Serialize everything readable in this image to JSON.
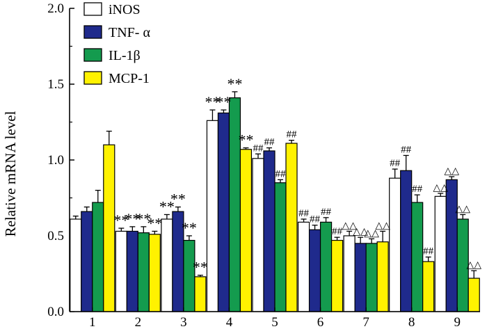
{
  "chart_data": {
    "type": "bar",
    "title": "",
    "xlabel": "",
    "ylabel": "Relative mRNA level",
    "ylim": [
      0,
      2.0
    ],
    "yticks": [
      "0.0",
      "0.5",
      "1.0",
      "1.5",
      "2.0"
    ],
    "categories": [
      "1",
      "2",
      "3",
      "4",
      "5",
      "6",
      "7",
      "8",
      "9"
    ],
    "legend_position": "top-left",
    "series": [
      {
        "name": "iNOS",
        "color": "#ffffff",
        "values": [
          0.61,
          0.53,
          0.61,
          1.26,
          1.01,
          0.59,
          0.5,
          0.88,
          0.76
        ],
        "errors": [
          0.02,
          0.02,
          0.03,
          0.07,
          0.03,
          0.02,
          0.03,
          0.06,
          0.02
        ],
        "annotations": [
          "",
          "**",
          "**",
          "**",
          "##",
          "##",
          "△△",
          "##",
          "△△"
        ]
      },
      {
        "name": "TNF- α",
        "color": "#1f2a8c",
        "values": [
          0.66,
          0.53,
          0.66,
          1.31,
          1.06,
          0.54,
          0.45,
          0.93,
          0.87
        ],
        "errors": [
          0.03,
          0.03,
          0.03,
          0.02,
          0.02,
          0.03,
          0.04,
          0.1,
          0.02
        ],
        "annotations": [
          "",
          "**",
          "**",
          "**",
          "##",
          "##",
          "△△",
          "##",
          "△△"
        ]
      },
      {
        "name": "IL-1β",
        "color": "#149b4e",
        "values": [
          0.72,
          0.52,
          0.47,
          1.41,
          0.85,
          0.59,
          0.45,
          0.72,
          0.61
        ],
        "errors": [
          0.08,
          0.04,
          0.03,
          0.04,
          0.02,
          0.03,
          0.03,
          0.05,
          0.03
        ],
        "annotations": [
          "",
          "**",
          "**",
          "**",
          "##",
          "##",
          "△△",
          "##",
          "△△"
        ]
      },
      {
        "name": "MCP-1",
        "color": "#fff200",
        "values": [
          1.1,
          0.51,
          0.23,
          1.07,
          1.11,
          0.47,
          0.46,
          0.33,
          0.22
        ],
        "errors": [
          0.09,
          0.02,
          0.01,
          0.01,
          0.02,
          0.02,
          0.07,
          0.03,
          0.05
        ],
        "annotations": [
          "",
          "**",
          "**",
          "**",
          "##",
          "##",
          "△△",
          "##",
          "△△"
        ]
      }
    ]
  }
}
